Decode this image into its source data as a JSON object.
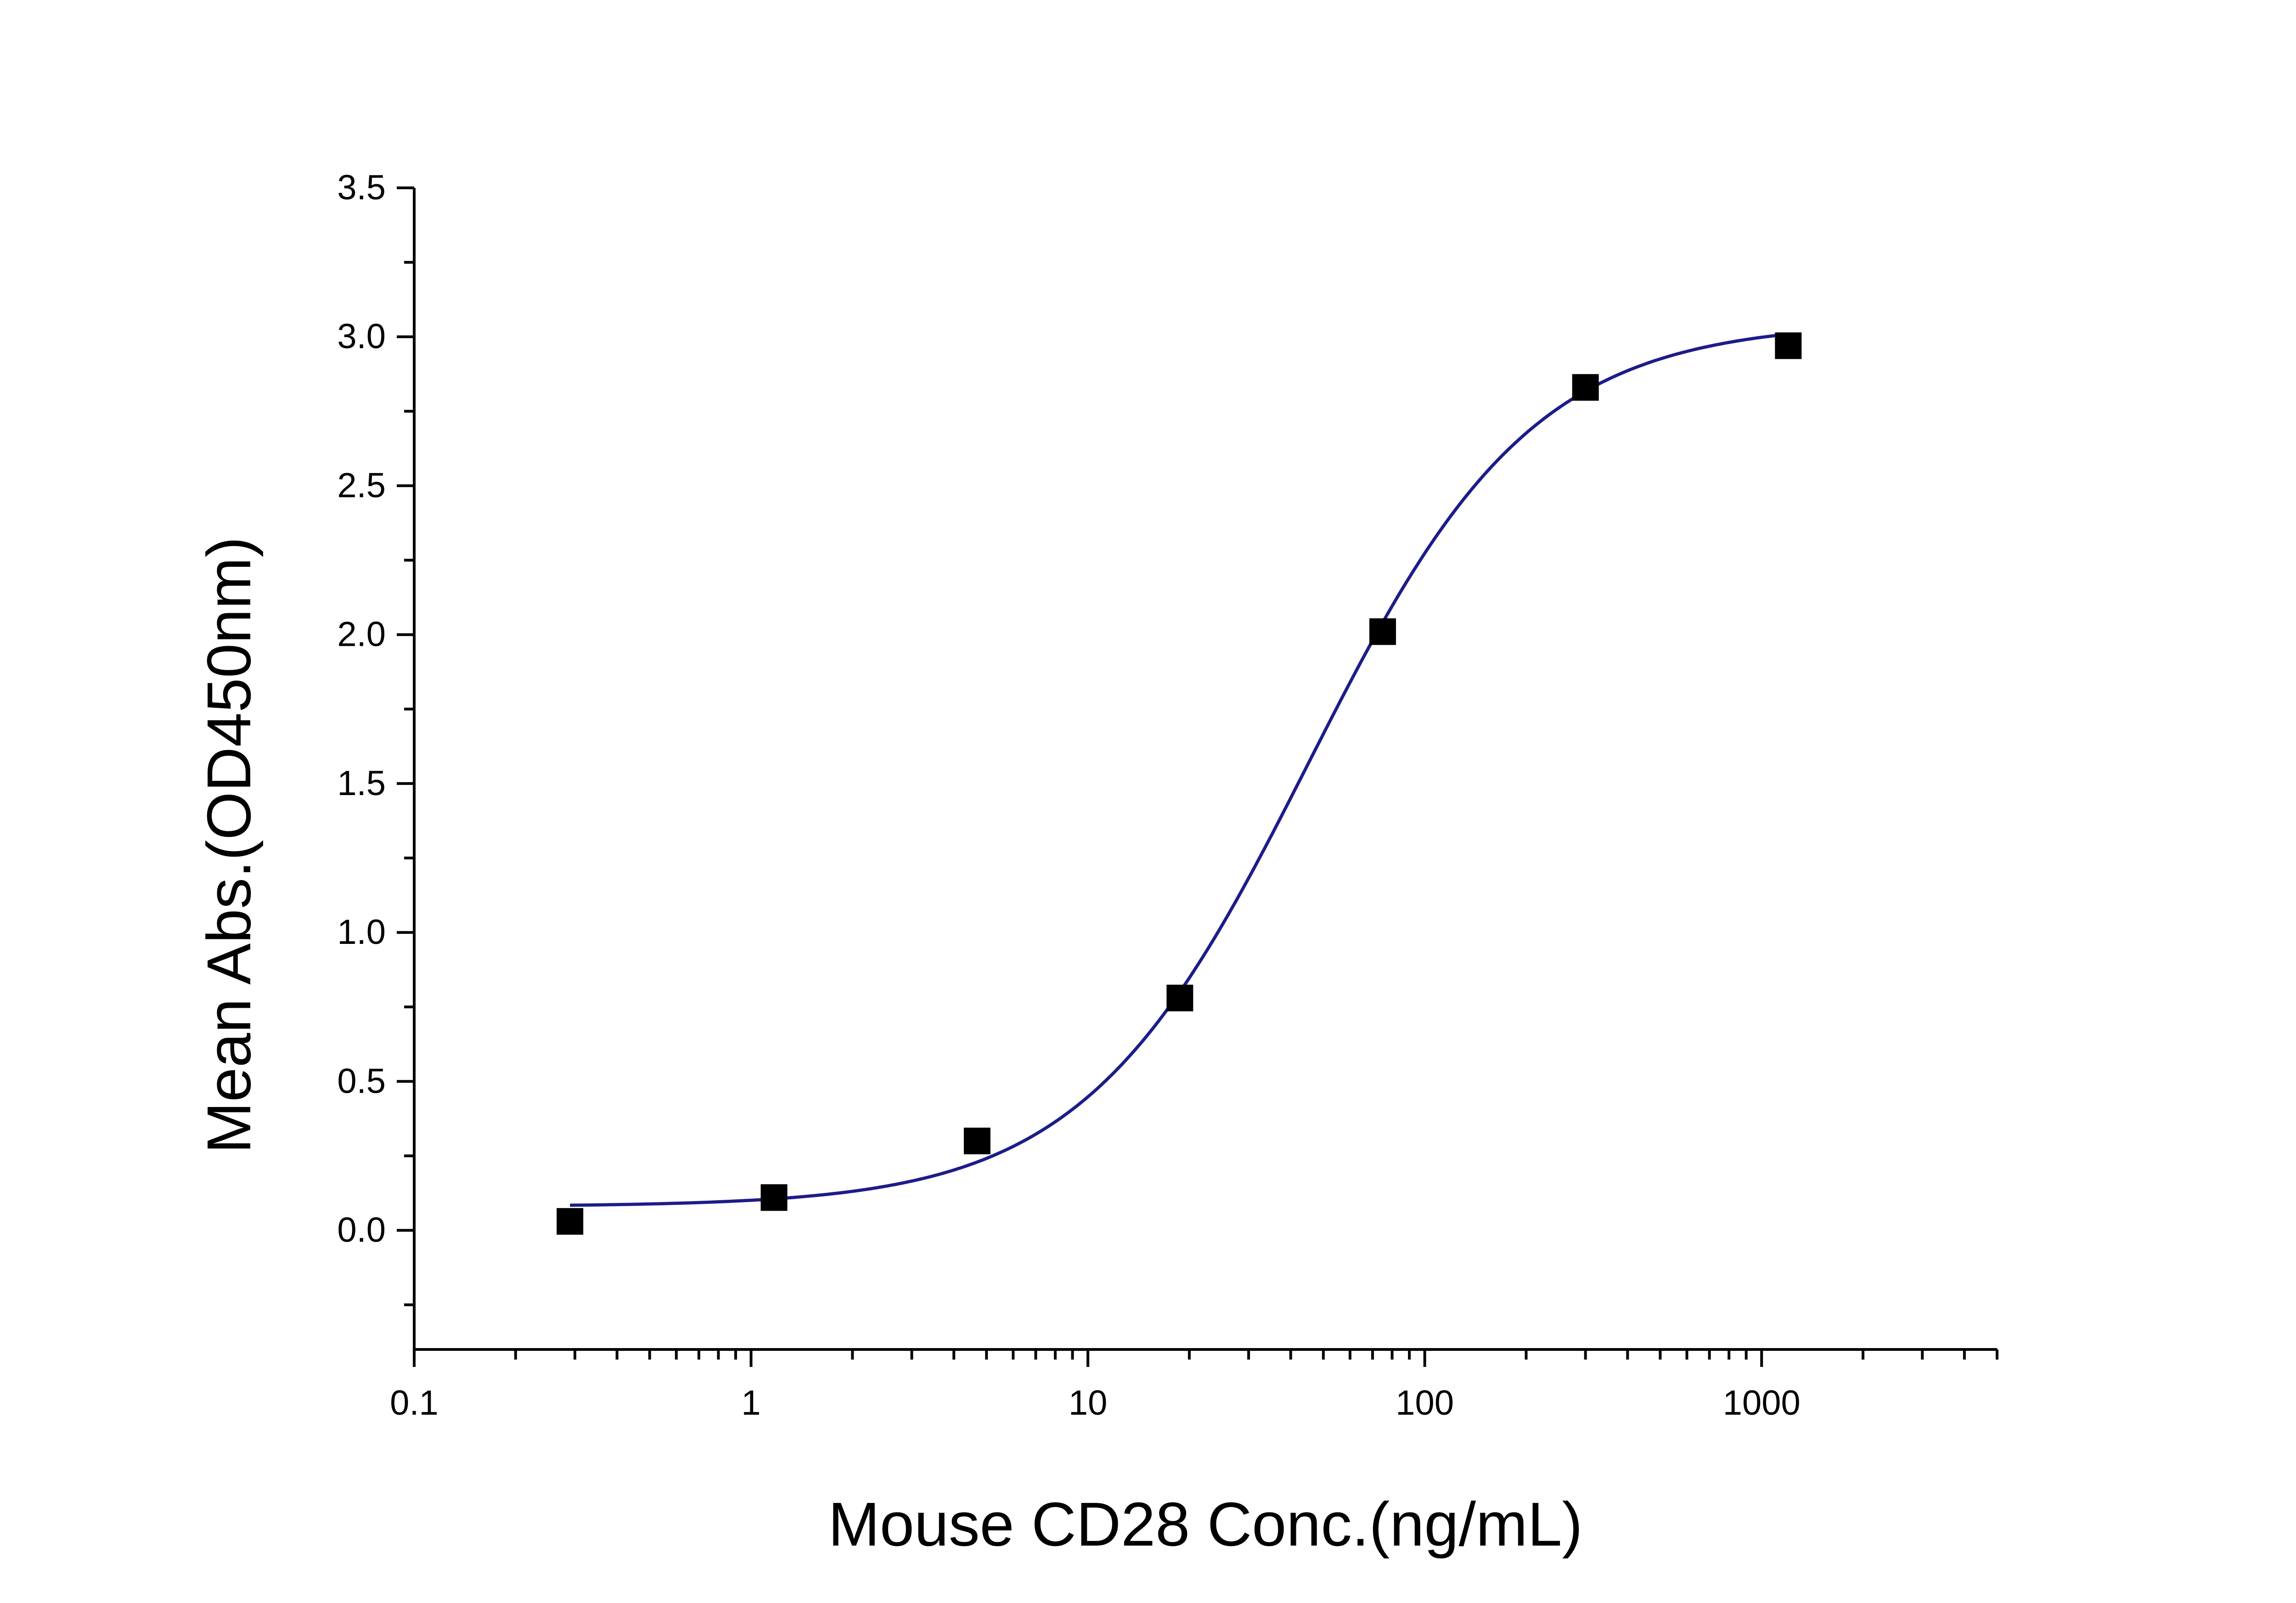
{
  "chart_data": {
    "type": "scatter",
    "title": "",
    "xlabel": "Mouse CD28 Conc.(ng/mL)",
    "ylabel": "Mean Abs.(OD450nm)",
    "x_scale": "log",
    "xlim": [
      0.1,
      5000
    ],
    "ylim": [
      -0.4,
      3.5
    ],
    "x_ticks": [
      "0.1",
      "1",
      "10",
      "100",
      "1000"
    ],
    "y_ticks": [
      "0.0",
      "0.5",
      "1.0",
      "1.5",
      "2.0",
      "2.5",
      "3.0",
      "3.5"
    ],
    "grid": false,
    "legend": "none",
    "series": [
      {
        "marker": "square",
        "color": "#000000",
        "x": [
          0.29,
          1.17,
          4.69,
          18.75,
          75,
          300,
          1200
        ],
        "y": [
          0.03,
          0.11,
          0.3,
          0.78,
          2.01,
          2.83,
          2.97
        ]
      }
    ],
    "fit": {
      "model": "4PL",
      "color": "#1c1c8a",
      "bottom": 0.08,
      "top": 3.05,
      "ec50": 45,
      "hill": 1.3,
      "x_range": [
        0.29,
        1200
      ]
    }
  }
}
